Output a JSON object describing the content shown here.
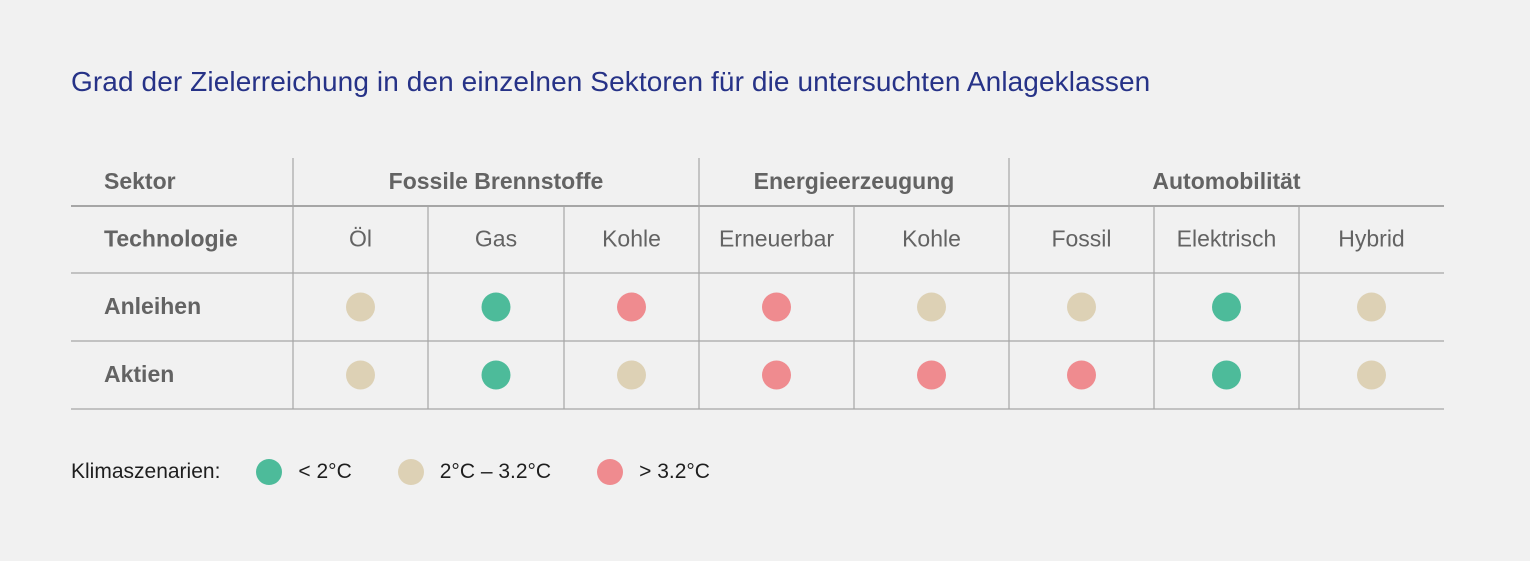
{
  "title": "Grad der Zielerreichung in den einzelnen Sektoren für die untersuchten Anlageklassen",
  "colors": {
    "lt2": "#4dbb9a",
    "mid": "#ddd1b5",
    "gt32": "#ef8b8f",
    "title": "#263287",
    "header_text": "#636363",
    "grid": "#a6a6a6"
  },
  "chart_data": {
    "type": "table",
    "row_header_sector": "Sektor",
    "row_header_technology": "Technologie",
    "sectors": [
      {
        "name": "Fossile Brennstoffe",
        "technologies": [
          "Öl",
          "Gas",
          "Kohle"
        ]
      },
      {
        "name": "Energieerzeugung",
        "technologies": [
          "Erneuerbar",
          "Kohle"
        ]
      },
      {
        "name": "Automobilität",
        "technologies": [
          "Fossil",
          "Elektrisch",
          "Hybrid"
        ]
      }
    ],
    "rows": [
      {
        "name": "Anleihen",
        "values": [
          "2°C – 3.2°C",
          "< 2°C",
          "> 3.2°C",
          "> 3.2°C",
          "2°C – 3.2°C",
          "2°C – 3.2°C",
          "< 2°C",
          "2°C – 3.2°C"
        ]
      },
      {
        "name": "Aktien",
        "values": [
          "2°C – 3.2°C",
          "< 2°C",
          "2°C – 3.2°C",
          "> 3.2°C",
          "> 3.2°C",
          "> 3.2°C",
          "< 2°C",
          "2°C – 3.2°C"
        ]
      }
    ]
  },
  "legend": {
    "label": "Klimaszenarien:",
    "items": [
      {
        "label": "< 2°C",
        "color": "#4dbb9a"
      },
      {
        "label": "2°C – 3.2°C",
        "color": "#ddd1b5"
      },
      {
        "label": "> 3.2°C",
        "color": "#ef8b8f"
      }
    ]
  }
}
